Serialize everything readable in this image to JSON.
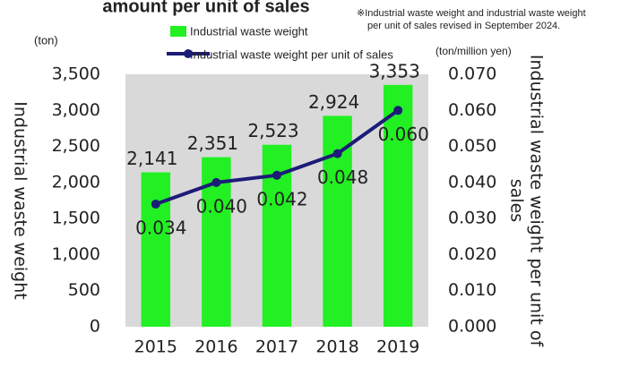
{
  "chart_data": {
    "type": "bar",
    "title": "amount per unit of sales",
    "annotations": [
      "※Industrial waste weight and industrial waste weight",
      "per unit of sales revised in September 2024."
    ],
    "ylabel": "Industrial waste weight",
    "y2label": [
      "Industrial waste weight per unit of",
      "sales"
    ],
    "yunit": "(ton)",
    "y2unit": "(ton/million yen)",
    "categories": [
      "2015",
      "2016",
      "2017",
      "2018",
      "2019"
    ],
    "series": [
      {
        "name": "Industrial waste weight",
        "type": "bar",
        "color": "#22f022",
        "values": [
          2141,
          2351,
          2523,
          2924,
          3353
        ],
        "value_labels": [
          "2,141",
          "2,351",
          "2,523",
          "2,924",
          "3,353"
        ]
      },
      {
        "name": "Industrial waste weight per unit of sales",
        "type": "line",
        "axis": "y2",
        "color": "#1c1c78",
        "values": [
          0.034,
          0.04,
          0.042,
          0.048,
          0.06
        ],
        "value_labels": [
          "0.034",
          "0.040",
          "0.042",
          "0.048",
          "0.060"
        ]
      }
    ],
    "ylim": [
      0,
      3500
    ],
    "yticks": [
      0,
      500,
      {
        "value": 1000,
        "label": "1,000"
      },
      {
        "value": 1500,
        "label": "1,500"
      },
      {
        "value": 2000,
        "label": "2,000"
      },
      {
        "value": 2500,
        "label": "2,500"
      },
      {
        "value": 3000,
        "label": "3,000"
      },
      {
        "value": 3500,
        "label": "3,500"
      }
    ],
    "y2lim": [
      0,
      0.07
    ],
    "y2ticks": [
      {
        "value": 0,
        "label": "0.000"
      },
      {
        "value": 0.01,
        "label": "0.010"
      },
      {
        "value": 0.02,
        "label": "0.020"
      },
      {
        "value": 0.03,
        "label": "0.030"
      },
      {
        "value": 0.04,
        "label": "0.040"
      },
      {
        "value": 0.05,
        "label": "0.050"
      },
      {
        "value": 0.06,
        "label": "0.060"
      },
      {
        "value": 0.07,
        "label": "0.070"
      }
    ]
  }
}
